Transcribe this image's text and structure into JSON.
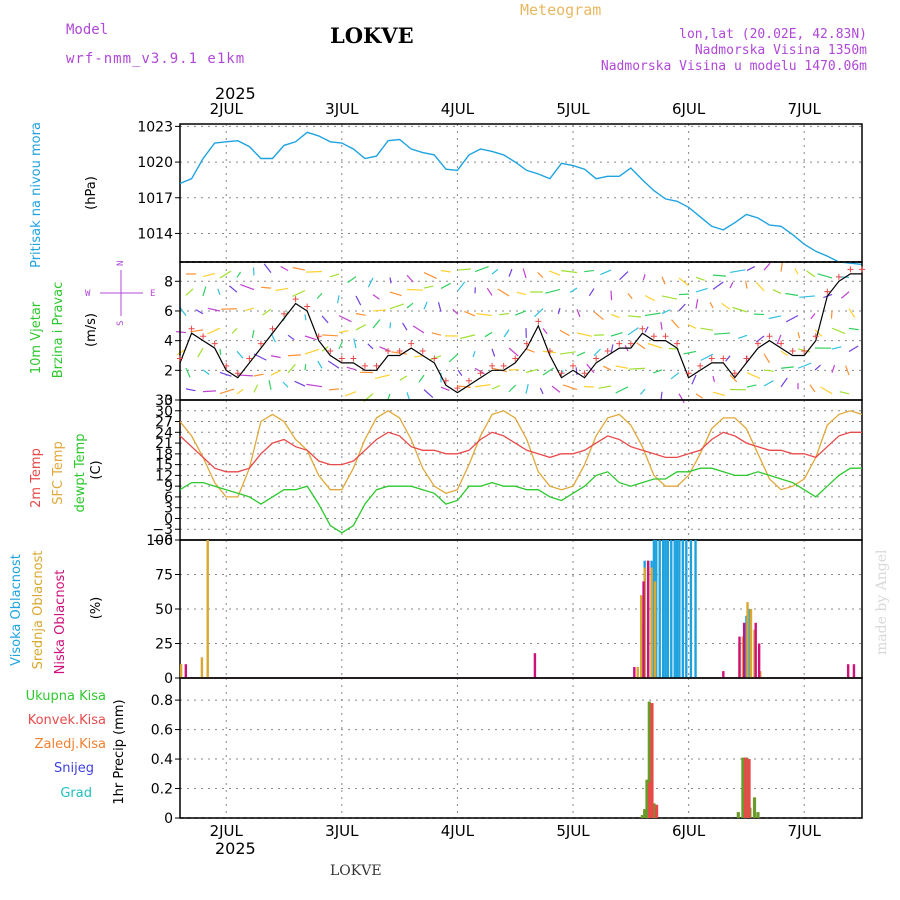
{
  "header": {
    "model_label": "Model",
    "model_name": "wrf-nmm_v3.9.1 e1km",
    "station": "LOKVE",
    "product": "Meteogram",
    "coords": "lon,lat (20.02E, 42.83N)",
    "elevation": "Nadmorska Visina 1350m",
    "model_elevation": "Nadmorska Visina u modelu 1470.06m",
    "watermark": "made by Angel",
    "footer_station": "LOKVE"
  },
  "colors": {
    "pressure": "#1fa3e0",
    "temp2m": "#e84a4a",
    "sfc_temp": "#e0a83a",
    "dewpt": "#2ec82e",
    "high_cloud": "#1fa3e0",
    "mid_cloud": "#d8a830",
    "low_cloud": "#d0107a",
    "total_precip": "#6a9a2a",
    "conv_precip": "#e84a4a",
    "frz_precip": "#f08030",
    "snow": "#4040e0",
    "hail": "#20c0c0",
    "header_purple": "#b048d8",
    "header_orange": "#e8b860"
  },
  "chart_data": [
    {
      "type": "line",
      "panel": "pressure",
      "ylabel_lines": [
        "Pritisak na nivou mora"
      ],
      "unit": "(hPa)",
      "year": "2025",
      "x_labels": [
        "2JUL",
        "3JUL",
        "4JUL",
        "5JUL",
        "6JUL",
        "7JUL"
      ],
      "x_day_start": 1.6,
      "x_day_end": 7.5,
      "y_ticks": [
        1014,
        1017,
        1020,
        1023
      ],
      "ylim": [
        1011.6,
        1023.2
      ],
      "series": [
        {
          "x": [
            1.6,
            1.7,
            1.8,
            1.9,
            2.0,
            2.1,
            2.2,
            2.3,
            2.4,
            2.5,
            2.6,
            2.7,
            2.8,
            2.9,
            3.0,
            3.1,
            3.2,
            3.3,
            3.4,
            3.5,
            3.6,
            3.7,
            3.8,
            3.9,
            4.0,
            4.1,
            4.2,
            4.3,
            4.4,
            4.5,
            4.6,
            4.7,
            4.8,
            4.9,
            5.0,
            5.1,
            5.2,
            5.3,
            5.4,
            5.5,
            5.6,
            5.7,
            5.8,
            5.9,
            6.0,
            6.1,
            6.2,
            6.3,
            6.4,
            6.5,
            6.6,
            6.7,
            6.8,
            6.9,
            7.0,
            7.1,
            7.2,
            7.3,
            7.4,
            7.5
          ],
          "values": [
            1018.2,
            1018.6,
            1020.3,
            1021.6,
            1021.7,
            1021.8,
            1021.3,
            1020.3,
            1020.3,
            1021.4,
            1021.7,
            1022.5,
            1022.2,
            1021.7,
            1021.6,
            1021.1,
            1020.3,
            1020.5,
            1021.8,
            1021.9,
            1021.1,
            1020.8,
            1020.6,
            1019.4,
            1019.3,
            1020.6,
            1021.1,
            1020.9,
            1020.6,
            1020.0,
            1019.3,
            1019.0,
            1018.6,
            1019.9,
            1019.7,
            1019.4,
            1018.6,
            1018.8,
            1018.8,
            1019.5,
            1018.5,
            1017.6,
            1016.9,
            1016.7,
            1016.2,
            1015.4,
            1014.6,
            1014.3,
            1014.9,
            1015.6,
            1015.3,
            1014.7,
            1014.6,
            1013.9,
            1013.1,
            1012.5,
            1012.1,
            1011.6,
            1011.5,
            1011.4
          ]
        }
      ]
    },
    {
      "type": "line",
      "panel": "wind",
      "ylabel_lines": [
        "10m Vjetar",
        "Brzina i Pravac"
      ],
      "unit": "(m/s)",
      "legend_compass": [
        "N",
        "W",
        "E",
        "S"
      ],
      "y_ticks": [
        0,
        2,
        4,
        6,
        8
      ],
      "ylim": [
        0,
        9.3
      ],
      "series": [
        {
          "name": "speed",
          "x": [
            1.6,
            1.7,
            1.8,
            1.9,
            2.0,
            2.1,
            2.2,
            2.3,
            2.4,
            2.5,
            2.6,
            2.7,
            2.8,
            2.9,
            3.0,
            3.1,
            3.2,
            3.3,
            3.4,
            3.5,
            3.6,
            3.7,
            3.8,
            3.9,
            4.0,
            4.1,
            4.2,
            4.3,
            4.4,
            4.5,
            4.6,
            4.7,
            4.8,
            4.9,
            5.0,
            5.1,
            5.2,
            5.3,
            5.4,
            5.5,
            5.6,
            5.7,
            5.8,
            5.9,
            6.0,
            6.1,
            6.2,
            6.3,
            6.4,
            6.5,
            6.6,
            6.7,
            6.8,
            6.9,
            7.0,
            7.1,
            7.2,
            7.3,
            7.4,
            7.5
          ],
          "values": [
            2.5,
            4.5,
            4.0,
            3.5,
            2.0,
            1.5,
            2.5,
            3.5,
            4.5,
            5.5,
            6.5,
            6.0,
            4.0,
            3.0,
            2.5,
            2.5,
            2.0,
            2.0,
            3.0,
            3.0,
            3.5,
            3.0,
            2.5,
            1.0,
            0.5,
            1.0,
            1.5,
            2.0,
            2.0,
            2.5,
            3.5,
            5.0,
            3.0,
            1.5,
            2.0,
            1.5,
            2.5,
            3.0,
            3.5,
            3.5,
            4.5,
            4.0,
            4.0,
            3.5,
            1.5,
            2.0,
            2.5,
            2.5,
            1.5,
            2.5,
            3.5,
            4.0,
            3.5,
            3.0,
            3.0,
            4.0,
            7.0,
            8.0,
            8.5,
            8.5
          ]
        }
      ]
    },
    {
      "type": "line",
      "panel": "temperature",
      "ylabel_lines": [
        "2m Temp",
        "SFC Temp",
        "dewpt Temp"
      ],
      "unit": "(C)",
      "y_ticks": [
        -6,
        -3,
        0,
        3,
        6,
        9,
        12,
        15,
        18,
        21,
        24,
        27,
        30,
        33
      ],
      "ylim": [
        -6,
        33
      ],
      "series": [
        {
          "name": "2m Temp",
          "x": [
            1.6,
            1.7,
            1.8,
            1.9,
            2.0,
            2.1,
            2.2,
            2.3,
            2.4,
            2.5,
            2.6,
            2.7,
            2.8,
            2.9,
            3.0,
            3.1,
            3.2,
            3.3,
            3.4,
            3.5,
            3.6,
            3.7,
            3.8,
            3.9,
            4.0,
            4.1,
            4.2,
            4.3,
            4.4,
            4.5,
            4.6,
            4.7,
            4.8,
            4.9,
            5.0,
            5.1,
            5.2,
            5.3,
            5.4,
            5.5,
            5.6,
            5.7,
            5.8,
            5.9,
            6.0,
            6.1,
            6.2,
            6.3,
            6.4,
            6.5,
            6.6,
            6.7,
            6.8,
            6.9,
            7.0,
            7.1,
            7.2,
            7.3,
            7.4,
            7.5
          ],
          "values": [
            23,
            20,
            17,
            14,
            13,
            13,
            14,
            18,
            21,
            22,
            20,
            19,
            16,
            15,
            15,
            16,
            19,
            22,
            24,
            23,
            20,
            19,
            19,
            18,
            18,
            19,
            22,
            24,
            23,
            21,
            19,
            18,
            17,
            18,
            18,
            19,
            21,
            23,
            22,
            20,
            19,
            18,
            17,
            17,
            18,
            19,
            22,
            24,
            23,
            21,
            20,
            19,
            19,
            18,
            18,
            17,
            20,
            23,
            24,
            24
          ]
        },
        {
          "name": "SFC Temp",
          "x": [
            1.6,
            1.7,
            1.8,
            1.9,
            2.0,
            2.1,
            2.2,
            2.3,
            2.4,
            2.5,
            2.6,
            2.7,
            2.8,
            2.9,
            3.0,
            3.1,
            3.2,
            3.3,
            3.4,
            3.5,
            3.6,
            3.7,
            3.8,
            3.9,
            4.0,
            4.1,
            4.2,
            4.3,
            4.4,
            4.5,
            4.6,
            4.7,
            4.8,
            4.9,
            5.0,
            5.1,
            5.2,
            5.3,
            5.4,
            5.5,
            5.6,
            5.7,
            5.8,
            5.9,
            6.0,
            6.1,
            6.2,
            6.3,
            6.4,
            6.5,
            6.6,
            6.7,
            6.8,
            6.9,
            7.0,
            7.1,
            7.2,
            7.3,
            7.4,
            7.5
          ],
          "values": [
            27,
            23,
            17,
            10,
            6,
            6,
            14,
            27,
            29,
            27,
            22,
            19,
            12,
            8,
            8,
            14,
            22,
            28,
            30,
            28,
            22,
            14,
            9,
            7,
            8,
            15,
            23,
            29,
            30,
            28,
            22,
            13,
            9,
            8,
            9,
            15,
            23,
            28,
            29,
            26,
            20,
            12,
            9,
            9,
            12,
            18,
            25,
            28,
            28,
            25,
            18,
            11,
            8,
            9,
            11,
            17,
            26,
            29,
            30,
            29
          ]
        },
        {
          "name": "dewpt Temp",
          "x": [
            1.6,
            1.7,
            1.8,
            1.9,
            2.0,
            2.1,
            2.2,
            2.3,
            2.4,
            2.5,
            2.6,
            2.7,
            2.8,
            2.9,
            3.0,
            3.1,
            3.2,
            3.3,
            3.4,
            3.5,
            3.6,
            3.7,
            3.8,
            3.9,
            4.0,
            4.1,
            4.2,
            4.3,
            4.4,
            4.5,
            4.6,
            4.7,
            4.8,
            4.9,
            5.0,
            5.1,
            5.2,
            5.3,
            5.4,
            5.5,
            5.6,
            5.7,
            5.8,
            5.9,
            6.0,
            6.1,
            6.2,
            6.3,
            6.4,
            6.5,
            6.6,
            6.7,
            6.8,
            6.9,
            7.0,
            7.1,
            7.2,
            7.3,
            7.4,
            7.5
          ],
          "values": [
            8,
            10,
            10,
            9,
            8,
            7,
            6,
            4,
            6,
            8,
            8,
            9,
            4,
            -2,
            -4,
            -2,
            4,
            8,
            9,
            9,
            9,
            8,
            7,
            4,
            5,
            9,
            9,
            10,
            9,
            9,
            8,
            8,
            6,
            5,
            7,
            9,
            12,
            13,
            10,
            9,
            10,
            11,
            11,
            13,
            13,
            14,
            14,
            13,
            12,
            12,
            13,
            12,
            11,
            10,
            8,
            6,
            9,
            12,
            14,
            14
          ]
        }
      ]
    },
    {
      "type": "bar",
      "panel": "clouds",
      "ylabel_lines": [
        "Visoka Oblacnost",
        "Srednja Oblacnost",
        "Niska Oblacnost"
      ],
      "unit": "(%)",
      "y_ticks": [
        0,
        25,
        50,
        75,
        100
      ],
      "ylim": [
        0,
        100
      ],
      "series": [
        {
          "name": "Visoka Oblacnost",
          "x": [
            5.6,
            5.62,
            5.65,
            5.68,
            5.7,
            5.72,
            5.75,
            5.78,
            5.8,
            5.82,
            5.85,
            5.88,
            5.9,
            5.92,
            5.95,
            5.98,
            6.02,
            6.06,
            6.5,
            6.52
          ],
          "values": [
            40,
            85,
            85,
            85,
            100,
            100,
            100,
            100,
            100,
            100,
            100,
            100,
            100,
            100,
            100,
            100,
            100,
            100,
            45,
            50
          ]
        },
        {
          "name": "Srednja Oblacnost",
          "x": [
            1.62,
            1.8,
            1.85,
            5.57,
            5.6,
            5.63,
            5.66,
            5.69,
            5.72,
            6.45,
            6.48,
            6.52,
            6.55,
            6.58,
            6.63
          ],
          "values": [
            10,
            15,
            100,
            8,
            60,
            80,
            85,
            80,
            70,
            25,
            30,
            55,
            50,
            35,
            5
          ]
        },
        {
          "name": "Niska Oblacnost",
          "x": [
            1.64,
            4.66,
            5.52,
            5.6,
            5.64,
            6.29,
            6.43,
            6.47,
            6.57,
            6.6,
            7.37,
            7.42
          ],
          "values": [
            10,
            18,
            8,
            70,
            85,
            5,
            30,
            40,
            40,
            25,
            10,
            10
          ]
        }
      ]
    },
    {
      "type": "bar",
      "panel": "precip",
      "legend": [
        "Ukupna Kisa",
        "Konvek.Kisa",
        "Zaledj.Kisa",
        "Snijeg",
        "Grad"
      ],
      "unit": "1hr Precip (mm)",
      "x_labels": [
        "2JUL",
        "3JUL",
        "4JUL",
        "5JUL",
        "6JUL",
        "7JUL"
      ],
      "year": "2025",
      "y_ticks": [
        0,
        0.2,
        0.4,
        0.6,
        0.8
      ],
      "ylim": [
        0,
        0.95
      ],
      "series": [
        {
          "name": "Ukupna Kisa",
          "x": [
            5.6,
            5.62,
            5.64,
            5.66,
            5.7,
            6.43,
            6.47,
            6.5,
            6.53,
            6.57,
            6.6
          ],
          "values": [
            0.02,
            0.06,
            0.26,
            0.79,
            0.1,
            0.04,
            0.41,
            0.41,
            0.07,
            0.14,
            0.04
          ]
        },
        {
          "name": "Konvek.Kisa",
          "x": [
            5.65,
            5.67,
            5.71,
            6.48,
            6.51
          ],
          "values": [
            0.24,
            0.78,
            0.09,
            0.41,
            0.4
          ]
        }
      ]
    }
  ]
}
